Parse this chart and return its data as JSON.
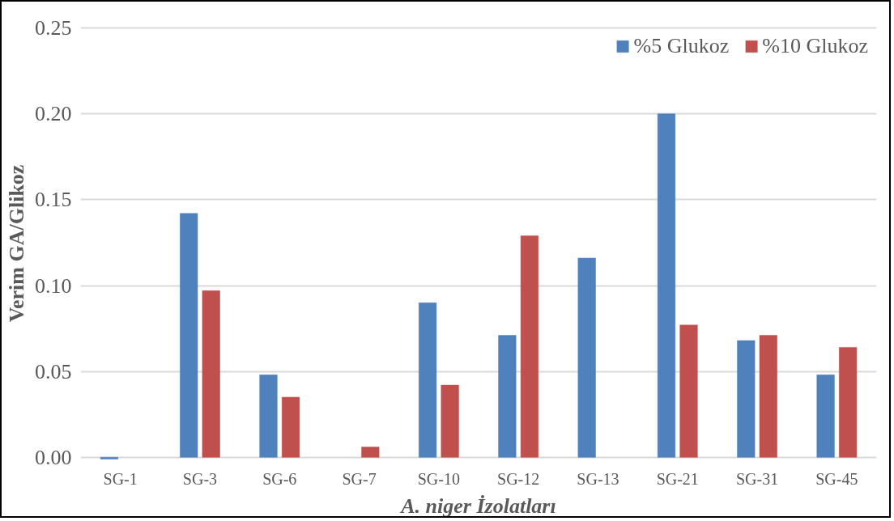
{
  "chart_data": {
    "type": "bar",
    "xlabel": "A. niger İzolatları",
    "ylabel": "Verim GA/Glikoz",
    "categories": [
      "SG-1",
      "SG-3",
      "SG-6",
      "SG-7",
      "SG-10",
      "SG-12",
      "SG-13",
      "SG-21",
      "SG-31",
      "SG-45"
    ],
    "series": [
      {
        "name": "%5 Glukoz",
        "color": "#4f81bd",
        "values": [
          -0.001,
          0.142,
          0.048,
          null,
          0.09,
          0.071,
          0.116,
          0.2,
          0.068,
          0.048
        ]
      },
      {
        "name": "%10 Glukoz",
        "color": "#c0504d",
        "values": [
          null,
          0.097,
          0.035,
          0.006,
          0.042,
          0.129,
          null,
          0.077,
          0.071,
          0.064
        ]
      }
    ],
    "ylim": [
      -0.002,
      0.251
    ],
    "yticks": [
      {
        "value": 0,
        "label": "0.00"
      },
      0.05,
      {
        "value": 0.1,
        "label": "0.10"
      },
      0.15,
      {
        "value": 0.2,
        "label": "0.20"
      },
      0.25
    ],
    "grid": "y",
    "legend": "top right"
  }
}
